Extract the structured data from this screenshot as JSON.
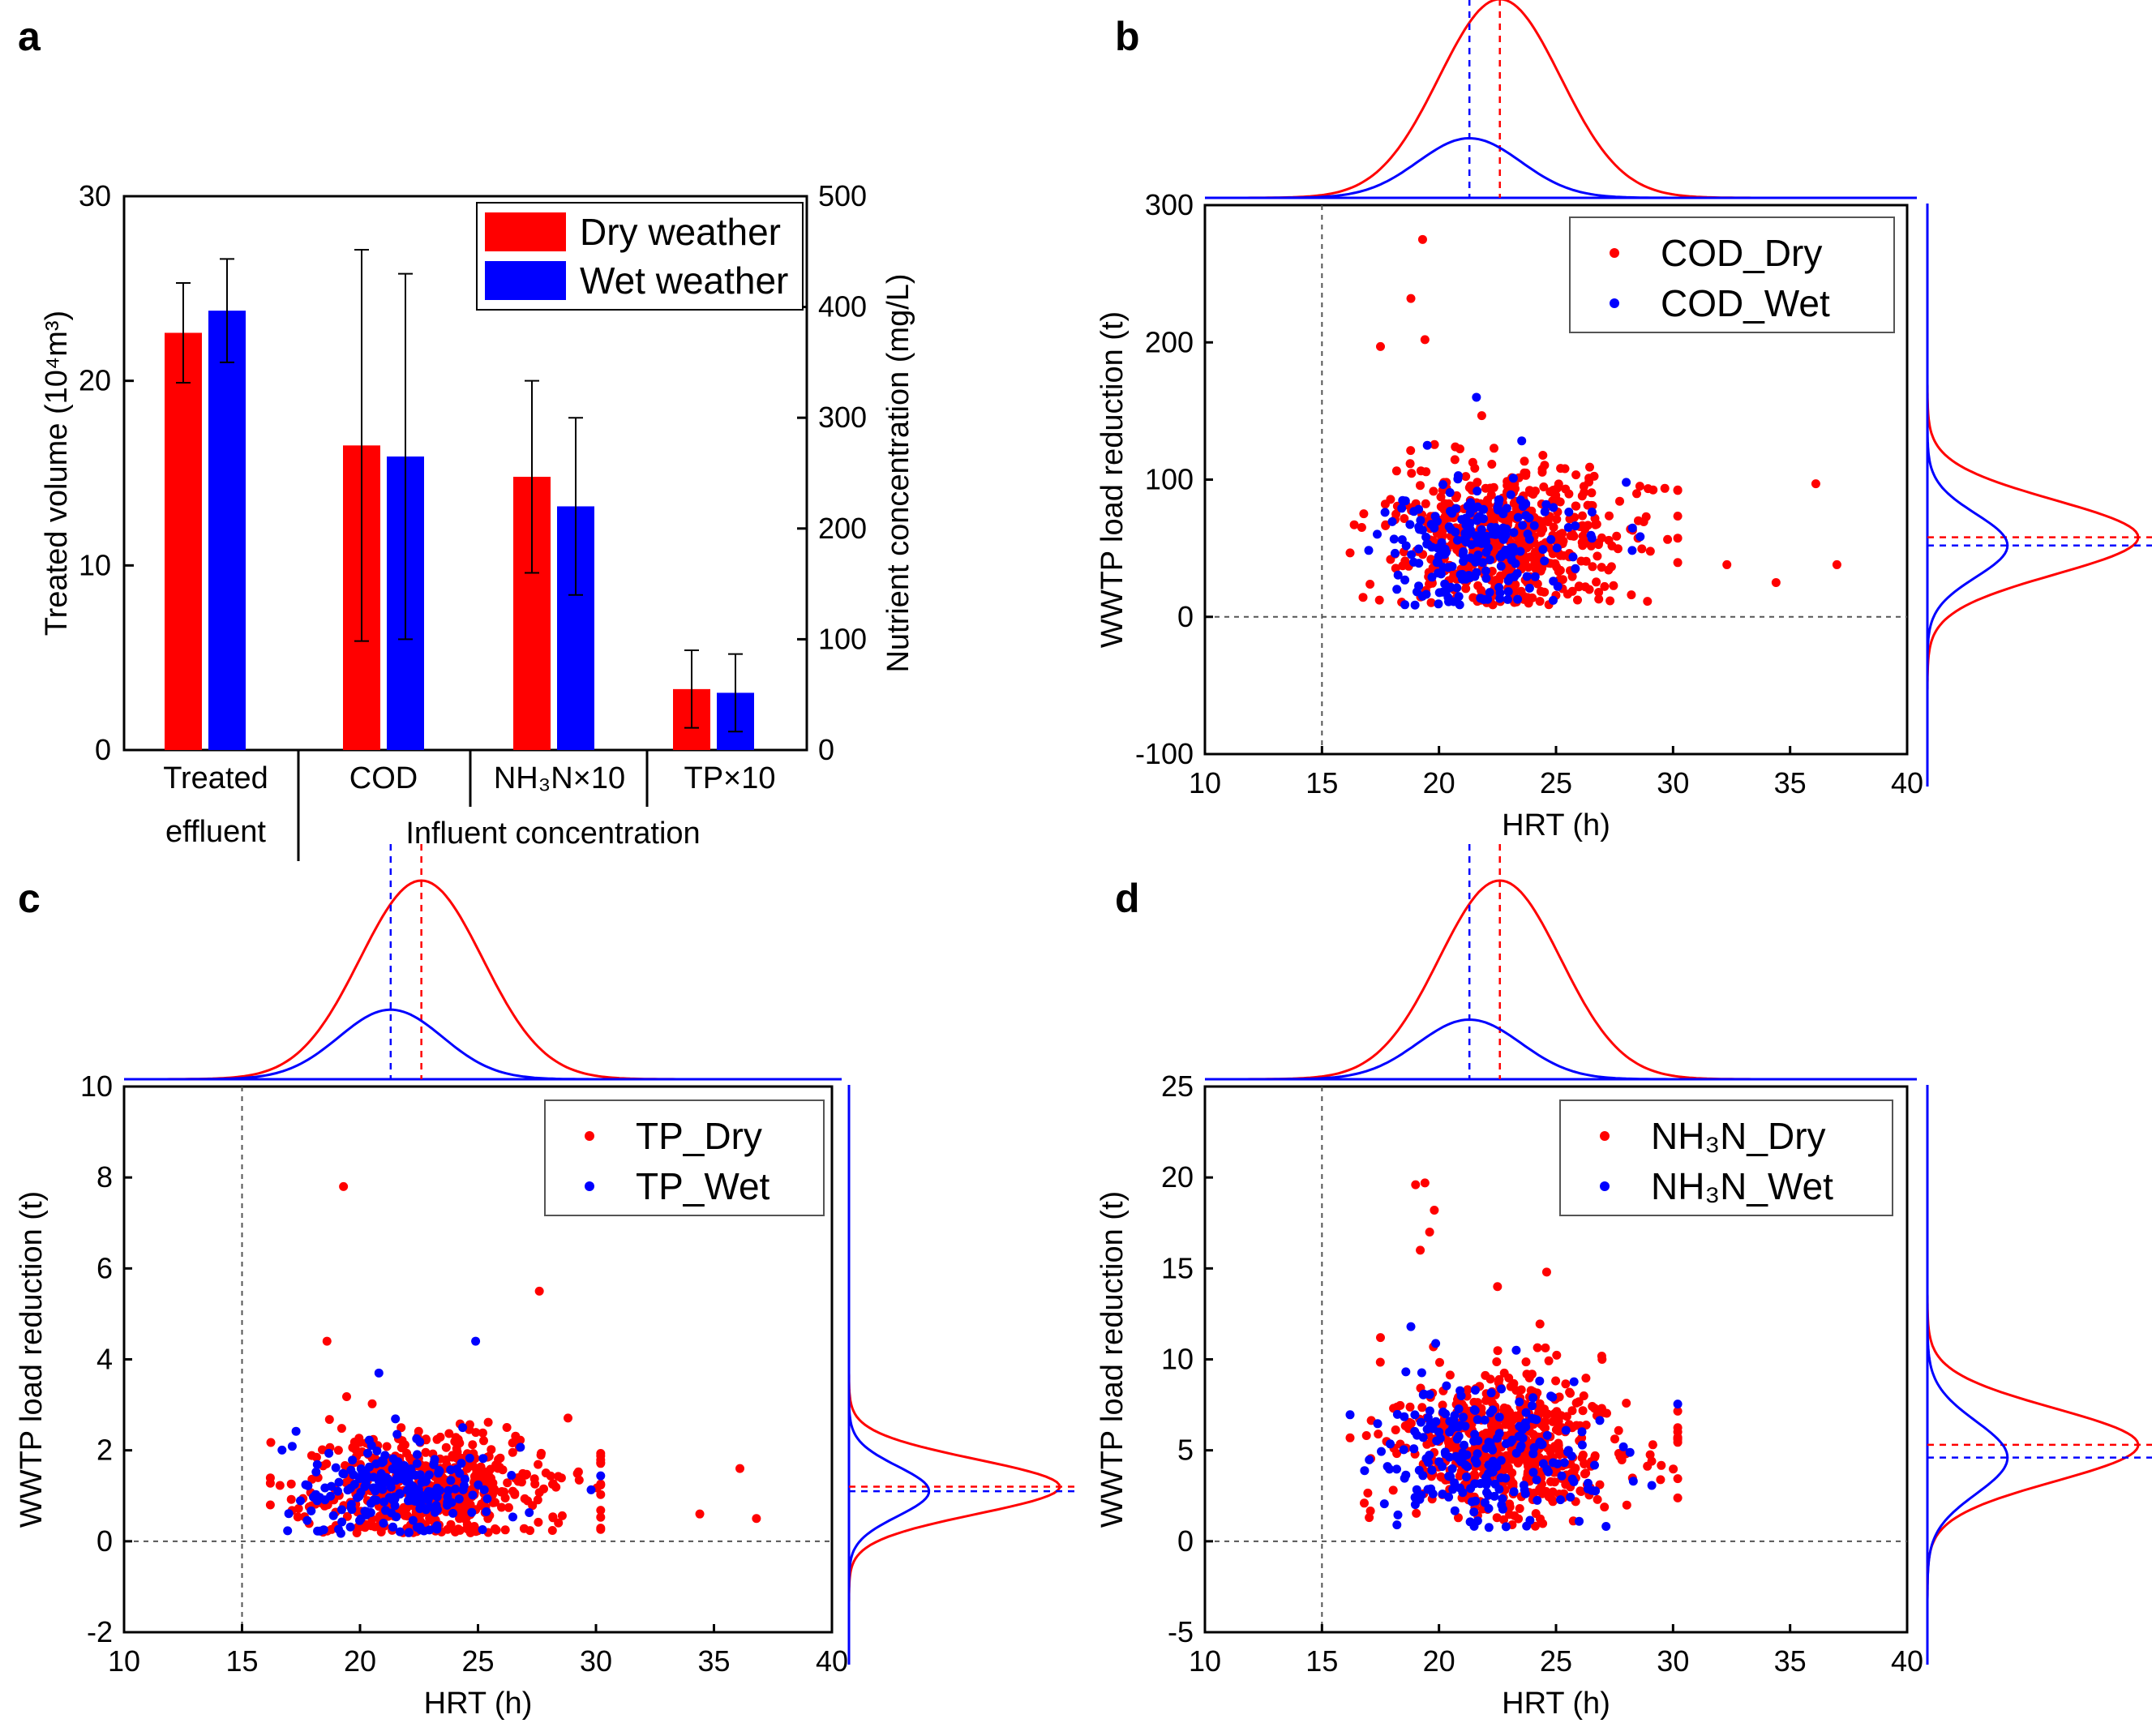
{
  "colors": {
    "dry": "#ff0000",
    "wet": "#0000ff",
    "axis": "#000000",
    "guide": "#555555"
  },
  "chart_data": [
    {
      "panel": "a",
      "type": "bar",
      "series": [
        {
          "name": "Dry weather",
          "color": "#ff0000",
          "values": [
            22.6,
            16.5,
            14.8,
            3.3
          ],
          "errors": [
            2.7,
            10.6,
            5.2,
            2.1
          ]
        },
        {
          "name": "Wet weather",
          "color": "#0000ff",
          "values": [
            23.8,
            15.9,
            13.2,
            3.1
          ],
          "errors": [
            2.8,
            9.9,
            4.8,
            2.1
          ]
        }
      ],
      "ylabel": "Treated volume (10⁴m³)",
      "ylabel2": "Nutrient concentration (mg/L)",
      "ylim": [
        0,
        30
      ],
      "ylim2": [
        0,
        500
      ],
      "yticks": [
        "0",
        "10",
        "20",
        "30"
      ],
      "yticks2": [
        "0",
        "100",
        "200",
        "300",
        "400",
        "500"
      ],
      "groups": [
        {
          "lines": [
            "Treated",
            "effluent"
          ]
        },
        {
          "lines": [
            "COD"
          ]
        },
        {
          "lines": [
            "NH₃N×10"
          ]
        },
        {
          "lines": [
            "TP×10"
          ]
        }
      ],
      "group_caption": "Influent concentration"
    },
    {
      "panel": "b",
      "type": "scatter",
      "xlabel": "HRT (h)",
      "ylabel": "WWTP load reduction (t)",
      "xlim": [
        10,
        40
      ],
      "ylim": [
        -100,
        300
      ],
      "xticks": [
        "10",
        "15",
        "20",
        "25",
        "30",
        "35",
        "40"
      ],
      "yticks": [
        "-100",
        "0",
        "100",
        "200",
        "300"
      ],
      "legend": [
        "COD_Dry",
        "COD_Wet"
      ],
      "dry": {
        "x_mean": 22.6,
        "x_sd": 2.6,
        "y_mean": 58,
        "y_sd": 27,
        "n": 560,
        "density_peak": 1.0
      },
      "wet": {
        "x_mean": 21.3,
        "x_sd": 2.2,
        "y_mean": 52,
        "y_sd": 23,
        "n": 220,
        "density_peak": 0.3
      },
      "outliers_dry": [
        [
          19.3,
          275
        ],
        [
          18.8,
          232
        ],
        [
          17.5,
          197
        ],
        [
          19.4,
          202
        ],
        [
          36.1,
          97
        ],
        [
          34.4,
          25
        ],
        [
          37.0,
          38
        ],
        [
          32.3,
          38
        ]
      ],
      "outliers_wet": [
        [
          21.6,
          160
        ],
        [
          19.5,
          125
        ],
        [
          28.0,
          98
        ]
      ]
    },
    {
      "panel": "c",
      "type": "scatter",
      "xlabel": "HRT (h)",
      "ylabel": "WWTP load reduction (t)",
      "xlim": [
        10,
        40
      ],
      "ylim": [
        -2,
        10
      ],
      "xticks": [
        "10",
        "15",
        "20",
        "25",
        "30",
        "35",
        "40"
      ],
      "yticks": [
        "-2",
        "0",
        "2",
        "4",
        "6",
        "8",
        "10"
      ],
      "legend": [
        "TP_Dry",
        "TP_Wet"
      ],
      "dry": {
        "x_mean": 22.6,
        "x_sd": 2.6,
        "y_mean": 1.2,
        "y_sd": 0.6,
        "n": 560,
        "density_peak": 1.0
      },
      "wet": {
        "x_mean": 21.3,
        "x_sd": 2.2,
        "y_mean": 1.1,
        "y_sd": 0.55,
        "n": 220,
        "density_peak": 0.35
      },
      "outliers_dry": [
        [
          19.3,
          7.8
        ],
        [
          18.6,
          4.4
        ],
        [
          27.6,
          5.5
        ],
        [
          36.1,
          1.6
        ],
        [
          36.8,
          0.5
        ],
        [
          34.4,
          0.6
        ]
      ],
      "outliers_wet": [
        [
          24.9,
          4.4
        ],
        [
          20.8,
          3.7
        ]
      ]
    },
    {
      "panel": "d",
      "type": "scatter",
      "xlabel": "HRT (h)",
      "ylabel": "WWTP load reduction (t)",
      "xlim": [
        10,
        40
      ],
      "ylim": [
        -5,
        25
      ],
      "xticks": [
        "10",
        "15",
        "20",
        "25",
        "30",
        "35",
        "40"
      ],
      "yticks": [
        "-5",
        "0",
        "5",
        "10",
        "15",
        "20",
        "25"
      ],
      "legend": [
        "NH₃N_Dry",
        "NH₃N_Wet"
      ],
      "dry": {
        "x_mean": 22.6,
        "x_sd": 2.6,
        "y_mean": 5.3,
        "y_sd": 2.0,
        "n": 560,
        "density_peak": 1.0
      },
      "wet": {
        "x_mean": 21.3,
        "x_sd": 2.2,
        "y_mean": 4.6,
        "y_sd": 2.0,
        "n": 220,
        "density_peak": 0.3
      },
      "outliers_dry": [
        [
          19.0,
          19.6
        ],
        [
          19.4,
          19.7
        ],
        [
          19.8,
          18.2
        ],
        [
          19.6,
          17.0
        ],
        [
          19.2,
          16.0
        ],
        [
          22.5,
          14.0
        ],
        [
          24.6,
          14.8
        ],
        [
          17.5,
          11.2
        ]
      ],
      "outliers_wet": [
        [
          18.8,
          11.8
        ],
        [
          23.3,
          10.5
        ]
      ]
    }
  ]
}
